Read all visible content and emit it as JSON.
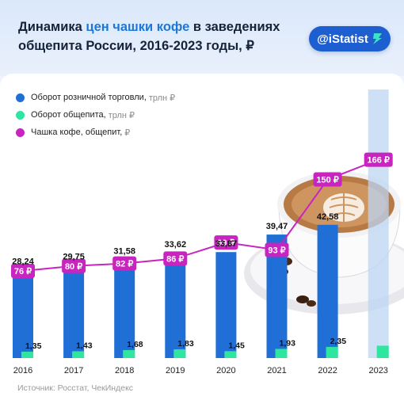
{
  "title": {
    "part1": "Динамика ",
    "highlight": "цен чашки кофе",
    "part2": " в заведениях общепита России, 2016-2023 годы, ₽"
  },
  "brand": {
    "label": "@iStatist"
  },
  "source": "Источник: Росстат, ЧекИндекс",
  "colors": {
    "retail": "#1f6fd6",
    "catering": "#2ee6a0",
    "coffee": "#c724c0",
    "highlight_col": "#bcd6f3"
  },
  "legend": [
    {
      "name": "Оборот розничной торговли,",
      "unit": "трлн ₽",
      "color": "#1f6fd6"
    },
    {
      "name": "Оборот общепита,",
      "unit": "трлн ₽",
      "color": "#2ee6a0"
    },
    {
      "name": "Чашка кофе, общепит,",
      "unit": "₽",
      "color": "#c724c0"
    }
  ],
  "chart_data": {
    "type": "bar",
    "categories": [
      "2016",
      "2017",
      "2018",
      "2019",
      "2020",
      "2021",
      "2022",
      "2023"
    ],
    "series": [
      {
        "name": "Оборот розничной торговли, трлн ₽",
        "type": "bar",
        "values": [
          28.24,
          29.75,
          31.58,
          33.62,
          33.87,
          39.47,
          42.58,
          null
        ],
        "labels": [
          "28,24",
          "29,75",
          "31,58",
          "33,62",
          "33,87",
          "39,47",
          "42,58",
          ""
        ]
      },
      {
        "name": "Оборот общепита, трлн ₽",
        "type": "bar",
        "values": [
          1.35,
          1.43,
          1.68,
          1.83,
          1.45,
          1.93,
          2.35,
          2.6
        ],
        "labels": [
          "1,35",
          "1,43",
          "1,68",
          "1,83",
          "1,45",
          "1,93",
          "2,35",
          ""
        ]
      },
      {
        "name": "Чашка кофе, общепит, ₽",
        "type": "line",
        "values": [
          76,
          80,
          82,
          86,
          99,
          93,
          150,
          166
        ],
        "labels": [
          "76 ₽",
          "80 ₽",
          "82 ₽",
          "86 ₽",
          "99 ₽",
          "93 ₽",
          "150 ₽",
          "166 ₽"
        ]
      }
    ],
    "highlighted_category": "2023",
    "grid": false,
    "legend_position": "top-left"
  }
}
